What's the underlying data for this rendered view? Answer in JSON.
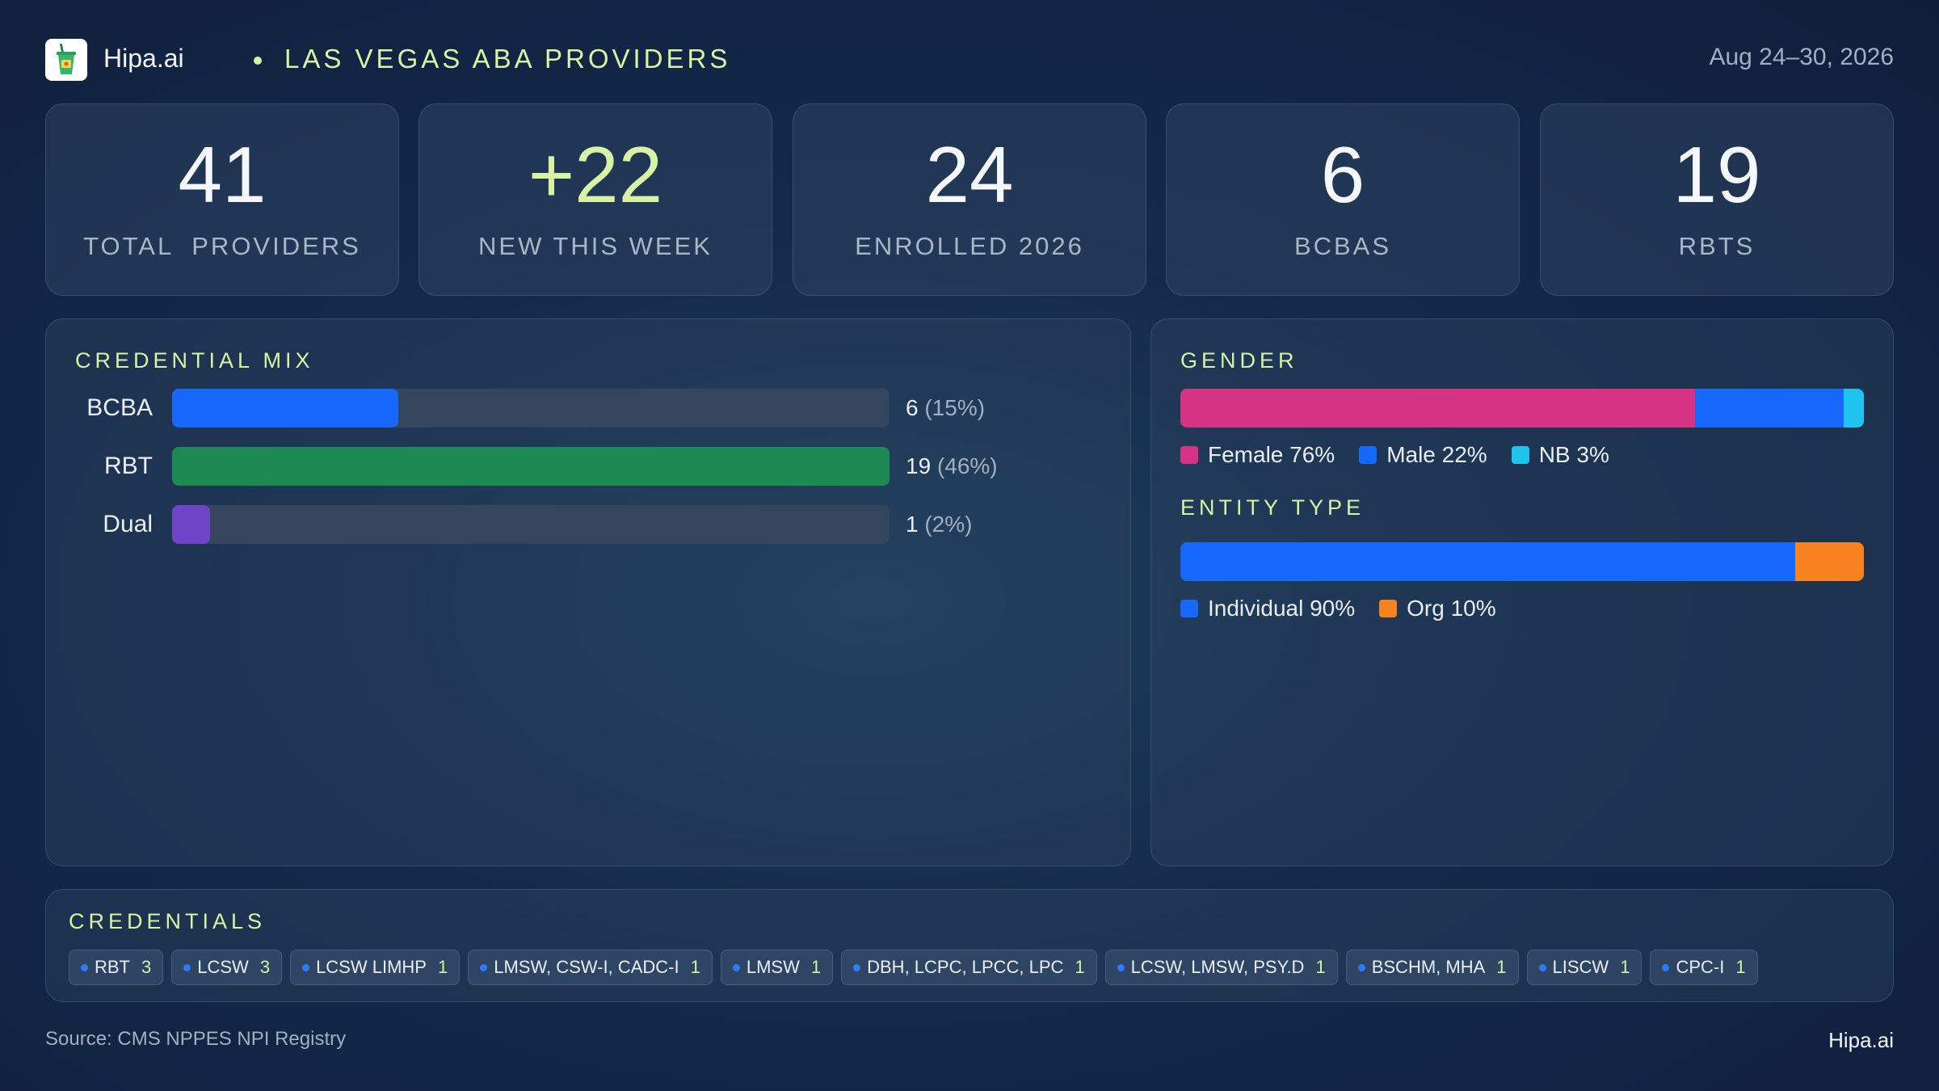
{
  "header": {
    "brand": "Hipa.ai",
    "subtitle": "LAS VEGAS ABA PROVIDERS",
    "date_range": "Aug 24–30, 2026"
  },
  "kpis": [
    {
      "value": "41",
      "label": "TOTAL  PROVIDERS"
    },
    {
      "value": "+22",
      "label": "NEW THIS WEEK"
    },
    {
      "value": "24",
      "label": "ENROLLED 2026"
    },
    {
      "value": "6",
      "label": "BCBAS"
    },
    {
      "value": "19",
      "label": "RBTS"
    }
  ],
  "colors": {
    "accent": "#d6f3a6",
    "bcba": "#1668ff",
    "rbt": "#1e8a53",
    "dual": "#6f45c8",
    "female": "#d63384",
    "male": "#1668ff",
    "nb": "#1ec4ee",
    "individual": "#1668ff",
    "org": "#f8821f"
  },
  "chart_data": [
    {
      "type": "bar",
      "title": "CREDENTIAL MIX",
      "categories": [
        "BCBA",
        "RBT",
        "Dual"
      ],
      "values": [
        6,
        19,
        1
      ],
      "value_labels": [
        "6",
        "19",
        "1"
      ],
      "pct_labels": [
        "(15%)",
        "(46%)",
        "(2%)"
      ],
      "colors": [
        "#1668ff",
        "#1e8a53",
        "#6f45c8"
      ],
      "xlim": [
        0,
        19
      ]
    },
    {
      "type": "bar",
      "title": "GENDER",
      "stacked": true,
      "categories": [
        "Female",
        "Male",
        "NB"
      ],
      "values": [
        76,
        22,
        3
      ],
      "legend_labels": [
        "Female 76%",
        "Male 22%",
        "NB 3%"
      ],
      "colors": [
        "#d63384",
        "#1668ff",
        "#1ec4ee"
      ]
    },
    {
      "type": "bar",
      "title": "ENTITY TYPE",
      "stacked": true,
      "categories": [
        "Individual",
        "Org"
      ],
      "values": [
        90,
        10
      ],
      "legend_labels": [
        "Individual 90%",
        "Org 10%"
      ],
      "colors": [
        "#1668ff",
        "#f8821f"
      ]
    }
  ],
  "credentials": {
    "title": "CREDENTIALS",
    "items": [
      {
        "name": "RBT",
        "count": "3"
      },
      {
        "name": "LCSW",
        "count": "3"
      },
      {
        "name": "LCSW LIMHP",
        "count": "1"
      },
      {
        "name": "LMSW, CSW-I, CADC-I",
        "count": "1"
      },
      {
        "name": "LMSW",
        "count": "1"
      },
      {
        "name": "DBH, LCPC, LPCC, LPC",
        "count": "1"
      },
      {
        "name": "LCSW, LMSW, PSY.D",
        "count": "1"
      },
      {
        "name": "BSCHM, MHA",
        "count": "1"
      },
      {
        "name": "LISCW",
        "count": "1"
      },
      {
        "name": "CPC-I",
        "count": "1"
      }
    ]
  },
  "footer": {
    "source": "Source: CMS NPPES NPI Registry",
    "brand": "Hipa.ai"
  }
}
